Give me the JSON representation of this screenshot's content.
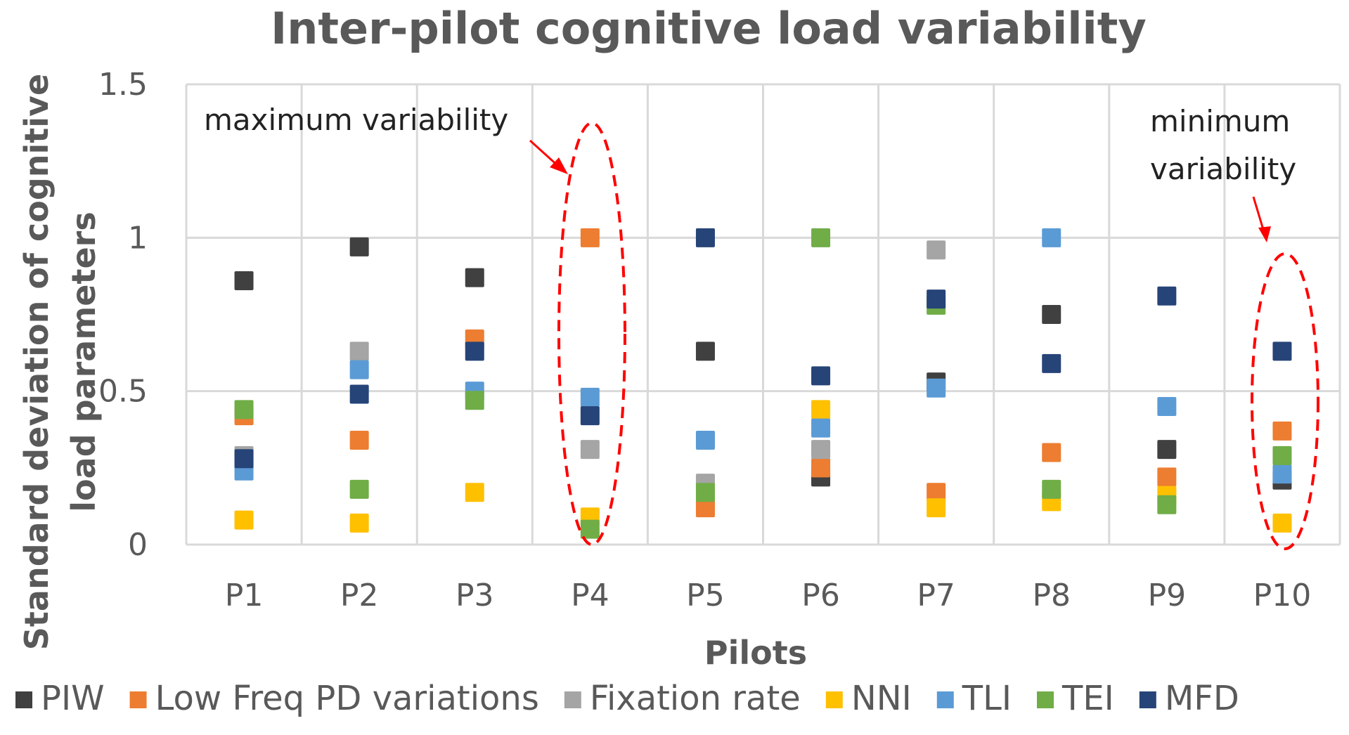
{
  "chart_data": {
    "type": "scatter",
    "title": "Inter-pilot cognitive load variability",
    "xlabel": "Pilots",
    "ylabel_lines": [
      "Standard  deviation of cognitive",
      "load parameters"
    ],
    "categories": [
      "P1",
      "P2",
      "P3",
      "P4",
      "P5",
      "P6",
      "P7",
      "P8",
      "P9",
      "P10"
    ],
    "ylim": [
      0,
      1.5
    ],
    "yticks": [
      0,
      0.5,
      1,
      1.5
    ],
    "ytick_labels": [
      "0",
      "0.5",
      "1",
      "1.5"
    ],
    "grid": true,
    "legend_position": "bottom",
    "series": [
      {
        "name": "PIW",
        "color": "#404040",
        "values": [
          0.86,
          0.97,
          0.87,
          null,
          0.63,
          0.22,
          0.53,
          0.75,
          0.31,
          0.21
        ]
      },
      {
        "name": "Low Freq PD variations",
        "color": "#ed7d31",
        "values": [
          0.42,
          0.34,
          0.67,
          1.0,
          0.12,
          0.25,
          0.17,
          0.3,
          0.22,
          0.37
        ]
      },
      {
        "name": "Fixation rate",
        "color": "#a5a5a5",
        "values": [
          0.29,
          0.63,
          null,
          0.31,
          0.2,
          0.31,
          0.96,
          null,
          null,
          null
        ]
      },
      {
        "name": "NNI",
        "color": "#ffc000",
        "values": [
          0.08,
          0.07,
          0.17,
          0.09,
          null,
          0.44,
          0.12,
          0.14,
          0.16,
          0.07
        ]
      },
      {
        "name": "TLI",
        "color": "#5b9bd5",
        "values": [
          0.24,
          0.57,
          0.5,
          0.48,
          0.34,
          0.38,
          0.51,
          1.0,
          0.45,
          0.23
        ]
      },
      {
        "name": "TEI",
        "color": "#70ad47",
        "values": [
          0.44,
          0.18,
          0.47,
          0.05,
          0.17,
          1.0,
          0.78,
          0.18,
          0.13,
          0.29
        ]
      },
      {
        "name": "MFD",
        "color": "#264478",
        "values": [
          0.28,
          0.49,
          0.63,
          0.42,
          1.0,
          0.55,
          0.8,
          0.59,
          0.81,
          0.63
        ]
      }
    ],
    "annotations": [
      {
        "id": "max",
        "lines": [
          "maximum variability"
        ],
        "target": "P4"
      },
      {
        "id": "min",
        "lines": [
          "minimum",
          "variability"
        ],
        "target": "P10"
      }
    ]
  }
}
